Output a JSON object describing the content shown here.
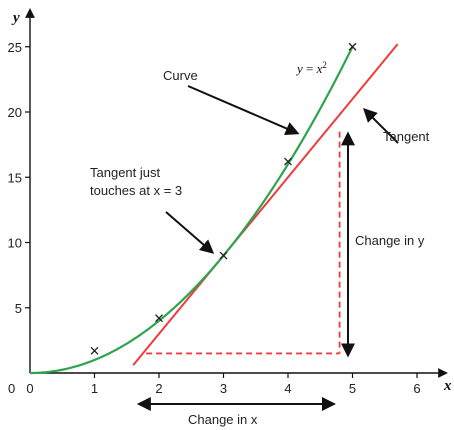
{
  "chart_data": {
    "type": "line",
    "xlabel": "x",
    "ylabel": "y",
    "xlim": [
      0,
      6.5
    ],
    "ylim": [
      0,
      27
    ],
    "x_ticks": [
      0,
      1,
      2,
      3,
      4,
      5,
      6
    ],
    "y_ticks": [
      0,
      5,
      10,
      15,
      20,
      25
    ],
    "curve": {
      "label": "y = x²",
      "color": "#2ea44f",
      "x_range": [
        0,
        5
      ]
    },
    "points": [
      {
        "x": 1,
        "y": 1.7
      },
      {
        "x": 2,
        "y": 4.2
      },
      {
        "x": 3,
        "y": 9
      },
      {
        "x": 4,
        "y": 16.2
      },
      {
        "x": 5,
        "y": 25
      }
    ],
    "tangent": {
      "at_x": 3,
      "slope": 6,
      "intercept": -9,
      "x_range": [
        1.6,
        5.7
      ],
      "color": "#ee3b3b"
    },
    "triangle": {
      "x0": 1.8,
      "x1": 4.8,
      "y0": 1.5,
      "y1": 18.5,
      "color": "#ee3b3b"
    },
    "annotations": {
      "curve": "Curve",
      "tangent": "Tangent",
      "touch_line1": "Tangent just",
      "touch_line2": "touches at x = 3",
      "change_y": "Change in y",
      "change_x": "Change in x"
    }
  }
}
